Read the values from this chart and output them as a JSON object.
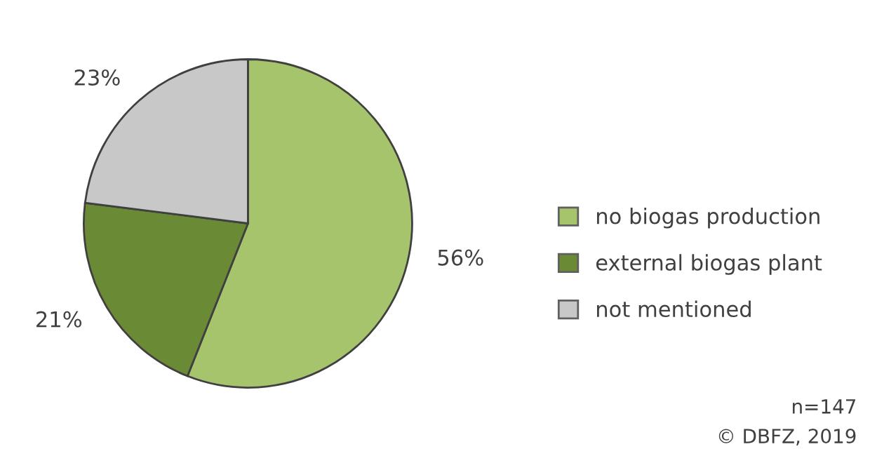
{
  "chart_data": {
    "type": "pie",
    "categories": [
      "no biogas production",
      "external biogas plant",
      "not mentioned"
    ],
    "values": [
      56,
      21,
      23
    ],
    "colors": [
      "#a6c46c",
      "#6b8a35",
      "#c8c8c8"
    ],
    "value_labels": [
      "56%",
      "21%",
      "23%"
    ],
    "legend": "right",
    "annotations": [
      "n=147",
      "© DBFZ, 2019"
    ]
  }
}
